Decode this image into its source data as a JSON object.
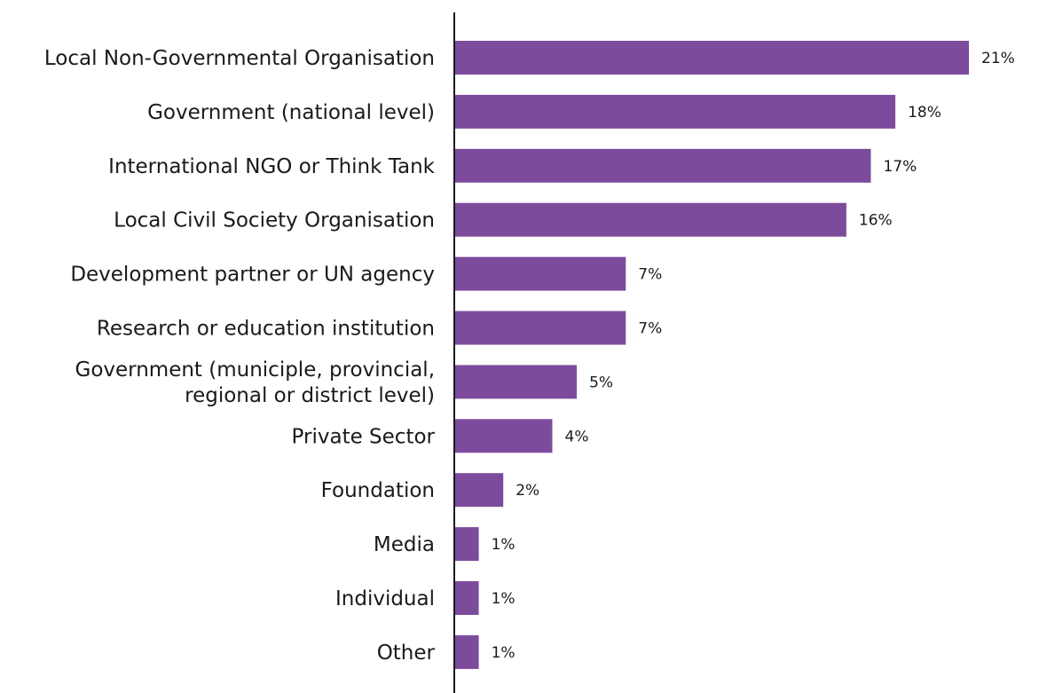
{
  "chart_data": {
    "type": "bar",
    "orientation": "horizontal",
    "title": "",
    "xlabel": "",
    "ylabel": "",
    "xlim": [
      0,
      21
    ],
    "grid": false,
    "categories": [
      [
        "Local Non-Governmental Organisation"
      ],
      [
        "Government (national level)"
      ],
      [
        "International NGO or Think Tank"
      ],
      [
        "Local Civil Society Organisation"
      ],
      [
        "Development partner or UN agency"
      ],
      [
        "Research or education institution"
      ],
      [
        "Government (municiple, provincial,",
        "regional or district level)"
      ],
      [
        "Private Sector"
      ],
      [
        "Foundation"
      ],
      [
        "Media"
      ],
      [
        "Individual"
      ],
      [
        "Other"
      ]
    ],
    "values": [
      21,
      18,
      17,
      16,
      7,
      7,
      5,
      4,
      2,
      1,
      1,
      1
    ],
    "value_labels": [
      "21%",
      "18%",
      "17%",
      "16%",
      "7%",
      "7%",
      "5%",
      "4%",
      "2%",
      "1%",
      "1%",
      "1%"
    ],
    "bar_color": "#7d4b9c",
    "axis_color": "#1a1a1a"
  }
}
